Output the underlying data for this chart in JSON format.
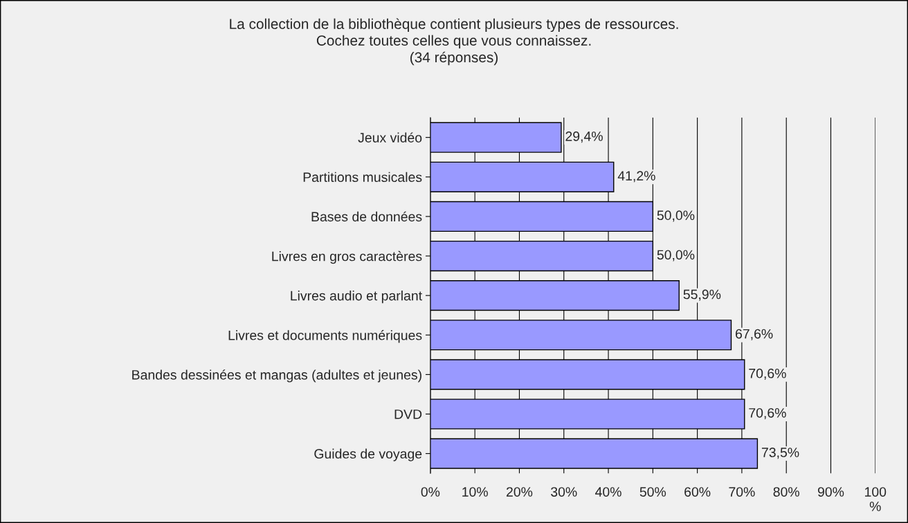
{
  "chart_data": {
    "type": "bar",
    "orientation": "horizontal",
    "title": "La collection de la bibliothèque contient plusieurs types de ressources.\nCochez toutes celles que vous connaissez.\n(34 réponses)",
    "categories": [
      "Jeux vidéo",
      "Partitions musicales",
      "Bases de données",
      "Livres en gros caractères",
      "Livres audio et parlant",
      "Livres et documents numériques",
      "Bandes dessinées et mangas (adultes et jeunes)",
      "DVD",
      "Guides de voyage"
    ],
    "values": [
      29.4,
      41.2,
      50.0,
      50.0,
      55.9,
      67.6,
      70.6,
      70.6,
      73.5
    ],
    "value_labels": [
      "29,4%",
      "41,2%",
      "50,0%",
      "50,0%",
      "55,9%",
      "67,6%",
      "70,6%",
      "70,6%",
      "73,5%"
    ],
    "color": "#9999ff",
    "xlim": [
      0,
      100
    ],
    "xticks": [
      {
        "value": 0,
        "label": "0%"
      },
      {
        "value": 10,
        "label": "10%"
      },
      {
        "value": 20,
        "label": "20%"
      },
      {
        "value": 30,
        "label": "30%"
      },
      {
        "value": 40,
        "label": "40%"
      },
      {
        "value": 50,
        "label": "50%"
      },
      {
        "value": 60,
        "label": "60%"
      },
      {
        "value": 70,
        "label": "70%"
      },
      {
        "value": 80,
        "label": "80%"
      },
      {
        "value": 90,
        "label": "90%"
      },
      {
        "value": 100,
        "label": "100\n%"
      }
    ],
    "grid": "x"
  }
}
